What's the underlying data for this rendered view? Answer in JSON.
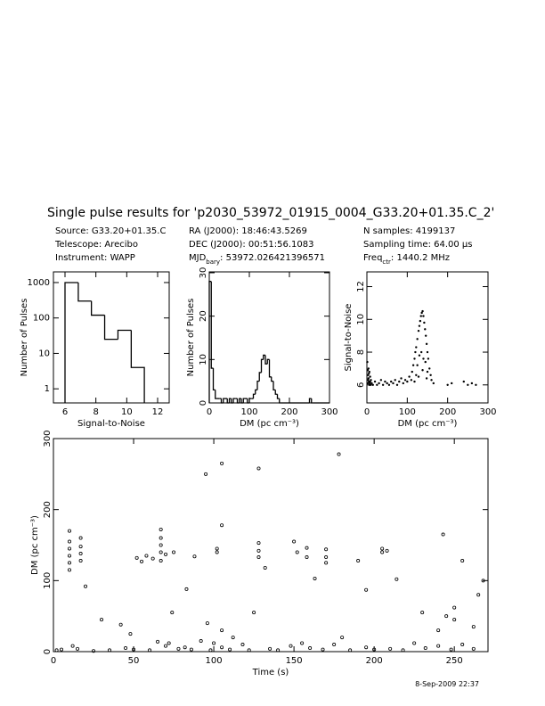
{
  "title": "Single pulse results for 'p2030_53972_01915_0004_G33.20+01.35.C_2'",
  "info": [
    [
      "Source: G33.20+01.35.C",
      "Telescope: Arecibo",
      "Instrument: WAPP"
    ],
    [
      "RA (J2000):      18:46:43.5269",
      "DEC (J2000):    00:51:56.1083",
      [
        "MJD",
        "bary",
        ": 53972.026421396571"
      ]
    ],
    [
      "N samples: 4199137",
      "Sampling time: 64.00 μs",
      [
        "Freq",
        "ctr",
        ": 1440.2 MHz"
      ]
    ]
  ],
  "footer": "8-Sep-2009 22:37",
  "chart_data": [
    {
      "type": "histogram",
      "xlabel": "Signal-to-Noise",
      "ylabel": "Number of Pulses",
      "bins": [
        6.0,
        6.86,
        7.71,
        8.57,
        9.43,
        10.29,
        11.14
      ],
      "values": [
        1000,
        300,
        120,
        25,
        45,
        4
      ],
      "xlim": [
        5.25,
        12.75
      ],
      "xticks": [
        6,
        8,
        10,
        12
      ],
      "ylim": [
        0.4,
        2000
      ],
      "yticks": [
        1,
        10,
        100,
        1000
      ],
      "log_y": true
    },
    {
      "type": "histogram",
      "xlabel": "DM (pc cm⁻³)",
      "ylabel": "Number of Pulses",
      "bins": [
        0,
        5,
        10,
        15,
        20,
        25,
        30,
        35,
        40,
        45,
        50,
        55,
        60,
        65,
        70,
        75,
        80,
        85,
        90,
        95,
        100,
        105,
        110,
        115,
        120,
        125,
        130,
        135,
        140,
        145,
        150,
        155,
        160,
        165,
        170,
        175,
        180,
        185,
        190,
        195,
        200,
        205,
        210,
        215,
        220,
        225,
        230,
        235,
        240,
        245,
        250,
        255,
        260,
        265,
        270,
        275,
        280,
        285,
        290,
        295,
        300
      ],
      "values": [
        28,
        8,
        3,
        1,
        1,
        1,
        0,
        1,
        1,
        0,
        1,
        0,
        1,
        1,
        0,
        1,
        0,
        1,
        1,
        0,
        1,
        1,
        2,
        3,
        5,
        7,
        10,
        11,
        9,
        10,
        6,
        5,
        3,
        2,
        1,
        0,
        0,
        0,
        0,
        0,
        0,
        0,
        0,
        0,
        0,
        0,
        0,
        0,
        0,
        0,
        1,
        0,
        0,
        0,
        0,
        0,
        0,
        0,
        0,
        0
      ],
      "xlim": [
        0,
        300
      ],
      "xticks": [
        0,
        100,
        200,
        300
      ],
      "ylim": [
        0,
        30.2
      ],
      "yticks": [
        0,
        10,
        20,
        30
      ]
    },
    {
      "type": "scatter",
      "xlabel": "DM (pc cm⁻³)",
      "ylabel": "Signal-to-Noise",
      "x": [
        1,
        2,
        3,
        4,
        5,
        6,
        7,
        8,
        9,
        10,
        2,
        4,
        6,
        3,
        5,
        8,
        12,
        15,
        20,
        25,
        30,
        35,
        40,
        45,
        50,
        55,
        60,
        65,
        70,
        75,
        80,
        85,
        90,
        95,
        100,
        105,
        110,
        112,
        115,
        118,
        120,
        122,
        125,
        128,
        130,
        132,
        134,
        136,
        138,
        140,
        142,
        144,
        146,
        148,
        150,
        152,
        155,
        158,
        160,
        165,
        125,
        130,
        135,
        140,
        145,
        150,
        128,
        138,
        148,
        118,
        122,
        200,
        210,
        240,
        250,
        260,
        270
      ],
      "y": [
        7.4,
        6.9,
        6.6,
        6.4,
        6.2,
        6.8,
        6.1,
        6.5,
        6.0,
        6.3,
        6.1,
        7.0,
        6.0,
        6.3,
        6.7,
        6.2,
        6.1,
        6.0,
        6.2,
        6.0,
        6.1,
        6.3,
        6.0,
        6.2,
        6.1,
        6.0,
        6.2,
        6.1,
        6.3,
        6.0,
        6.2,
        6.4,
        6.1,
        6.3,
        6.2,
        6.5,
        6.3,
        6.8,
        7.2,
        7.6,
        8.0,
        8.3,
        8.8,
        9.3,
        9.6,
        9.9,
        10.2,
        10.4,
        10.5,
        10.2,
        9.8,
        9.4,
        9.0,
        8.5,
        8.0,
        7.6,
        7.0,
        6.6,
        6.3,
        6.1,
        7.2,
        7.8,
        8.0,
        7.6,
        7.4,
        6.8,
        6.5,
        6.9,
        6.4,
        6.2,
        6.6,
        6.0,
        6.1,
        6.2,
        6.0,
        6.1,
        6.0
      ],
      "xlim": [
        0,
        300
      ],
      "xticks": [
        0,
        100,
        200,
        300
      ],
      "ylim": [
        4.9,
        12.9
      ],
      "yticks": [
        6,
        8,
        10,
        12
      ]
    },
    {
      "type": "scatter_circles",
      "xlabel": "Time (s)",
      "ylabel": "DM (pc cm⁻³)",
      "x": [
        10,
        10,
        10,
        10,
        10,
        10,
        17,
        17,
        17,
        17,
        20,
        30,
        42,
        48,
        52,
        55,
        58,
        62,
        67,
        67,
        67,
        67,
        67,
        70,
        74,
        75,
        83,
        88,
        95,
        96,
        102,
        102,
        105,
        105,
        105,
        112,
        125,
        128,
        128,
        128,
        128,
        132,
        150,
        152,
        158,
        158,
        163,
        170,
        170,
        170,
        178,
        180,
        190,
        195,
        205,
        205,
        208,
        214,
        230,
        240,
        243,
        245,
        250,
        250,
        255,
        262,
        265,
        268,
        2,
        5,
        15,
        25,
        35,
        45,
        50,
        60,
        70,
        72,
        78,
        82,
        86,
        92,
        98,
        105,
        110,
        118,
        122,
        135,
        140,
        148,
        155,
        160,
        168,
        175,
        185,
        195,
        200,
        210,
        218,
        225,
        232,
        240,
        248,
        255,
        262,
        12,
        65,
        100
      ],
      "y": [
        170,
        155,
        145,
        135,
        125,
        115,
        160,
        148,
        138,
        128,
        92,
        45,
        38,
        25,
        132,
        127,
        135,
        131,
        172,
        160,
        150,
        140,
        128,
        137,
        55,
        140,
        88,
        134,
        250,
        40,
        145,
        140,
        178,
        265,
        30,
        20,
        55,
        258,
        153,
        142,
        133,
        118,
        155,
        140,
        146,
        133,
        103,
        144,
        133,
        125,
        278,
        20,
        128,
        87,
        145,
        140,
        142,
        102,
        55,
        30,
        165,
        50,
        62,
        45,
        128,
        35,
        80,
        100,
        2,
        3,
        4,
        1,
        2,
        5,
        3,
        2,
        8,
        12,
        4,
        6,
        3,
        15,
        2,
        6,
        3,
        10,
        2,
        4,
        2,
        8,
        12,
        5,
        3,
        10,
        2,
        6,
        3,
        4,
        2,
        12,
        5,
        8,
        3,
        10,
        4,
        8,
        14,
        12
      ],
      "xlim": [
        0,
        271
      ],
      "xticks": [
        0,
        50,
        100,
        150,
        200,
        250
      ],
      "ylim": [
        0,
        300
      ],
      "yticks": [
        0,
        100,
        200,
        300
      ]
    }
  ]
}
